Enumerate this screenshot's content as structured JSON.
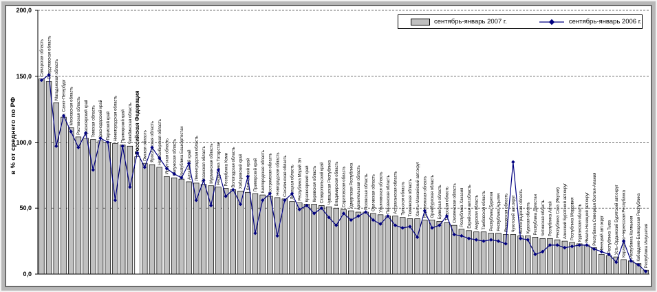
{
  "window": {
    "background": "#ffffff",
    "frame_color": "#b8b8b8"
  },
  "colors": {
    "bar_fill": "#c0c0c0",
    "bar_highlight_fill": "#ffffff",
    "bar_stroke": "#000000",
    "line_color": "#000080",
    "grid_color": "#404040",
    "axis_color": "#000000",
    "legend_border": "#000000"
  },
  "chart_data": {
    "type": "bar",
    "title": "",
    "xlabel": "",
    "ylabel": "в % от среднего по РФ",
    "ylim": [
      0,
      200
    ],
    "ytick_values": [
      0,
      50,
      100,
      150,
      200
    ],
    "ytick_labels": [
      "0,0",
      "50,0",
      "100,0",
      "150,0",
      "200,0"
    ],
    "grid": "horizontal dashed at 50/100/150/200",
    "legend_position": "top-right inside plot",
    "highlight_category": "Российская Федерация",
    "categories": [
      "Самарская область",
      "Свердловская область",
      "Магаданская область",
      "г. Санкт-Петербург",
      "Московская область",
      "Ростовская область",
      "Красноярский край",
      "Томская область",
      "Краснодарский край",
      "Пермский край",
      "Нижегородская область",
      "Приморский край",
      "Челябинская область",
      "Российская Федерация",
      "Омская область",
      "Ярославская область",
      "Новосибирская область",
      "Иркутская область",
      "Калужская область",
      "Республика Башкортостан",
      "Алтайский край",
      "Ленинградская область",
      "Рязанская область",
      "Мурманская область",
      "Республика Татарстан",
      "Республика Коми",
      "Вологодская область",
      "Хабаровский край",
      "Камчатский край",
      "Приморский край",
      "Белгородская область",
      "Костромская область",
      "Новгородская область",
      "Сахалинская область",
      "Липецкая область",
      "Республика Марий Эл",
      "Красноярский край",
      "Кировская область",
      "Ставропольский край",
      "Чувашская Республика",
      "Владимирская область",
      "Саратовская область",
      "Удмуртская Республика",
      "Архангельская область",
      "Псковская область",
      "Орловская область",
      "Ульяновская область",
      "Пензенская область",
      "Астраханская область",
      "Тульская область",
      "Тюменская область",
      "Ханты-Мансийский авт.округ",
      "Воронежская область",
      "Оренбургская область",
      "Брянская область",
      "Тверская область",
      "Смоленская область",
      "Республика Хакасия",
      "Еврейская авт.область",
      "Амурская область",
      "Тамбовская область",
      "Республика Бурятия",
      "Республика Адыгея",
      "Ивановская область",
      "Чукотский авт.округ",
      "Волгоградская область",
      "Курская область",
      "Республика Дагестан",
      "Читинская область",
      "Республика Алтай",
      "Республика Саха (Якутия)",
      "Агинский Бурятский авт.округ",
      "Республика Мордовия",
      "Курганская область",
      "Ямало-Ненецкий авт.округ",
      "Республика Северная Осетия-Алания",
      "Ненецкий авт.округ",
      "Республика Тыва",
      "Усть-Ордынский Бурятский авт.округ",
      "Карачаево-Черкесская Республика",
      "Республика Калмыкия",
      "Кабардино-Балкарская Республика",
      "Республика Ингушетия"
    ],
    "series": [
      {
        "name": "сентябрь-январь 2007 г.",
        "kind": "bar",
        "color": "#c0c0c0",
        "values": [
          148,
          146,
          130,
          119,
          111,
          104,
          103,
          102,
          101,
          100,
          99,
          98,
          97,
          89,
          84,
          83,
          81,
          74,
          73,
          72,
          70,
          69,
          68,
          67,
          66,
          65,
          64,
          63,
          62,
          61,
          60,
          59,
          58,
          57,
          55,
          54,
          53,
          53,
          52,
          51,
          50,
          49,
          48,
          47,
          47,
          46,
          45,
          44,
          44,
          43,
          42,
          42,
          41,
          41,
          40,
          39,
          37,
          34,
          33,
          32,
          32,
          31,
          31,
          30,
          30,
          29,
          29,
          28,
          27,
          27,
          26,
          25,
          24,
          23,
          22,
          20,
          15,
          14,
          13,
          11,
          10,
          8,
          3
        ]
      },
      {
        "name": "сентябрь-январь 2006 г.",
        "kind": "line",
        "color": "#000080",
        "values": [
          147,
          151,
          97,
          120,
          108,
          96,
          107,
          79,
          103,
          100,
          56,
          97,
          66,
          92,
          81,
          96,
          88,
          80,
          76,
          73,
          84,
          56,
          71,
          52,
          79,
          59,
          64,
          53,
          74,
          31,
          56,
          61,
          29,
          56,
          61,
          49,
          52,
          46,
          50,
          43,
          37,
          46,
          41,
          44,
          47,
          41,
          38,
          44,
          37,
          35,
          36,
          28,
          48,
          35,
          37,
          44,
          30,
          29,
          27,
          26,
          25,
          26,
          25,
          23,
          85,
          27,
          26,
          15,
          17,
          22,
          22,
          20,
          21,
          22,
          22,
          19,
          17,
          15,
          9,
          25,
          10,
          7,
          2
        ]
      }
    ]
  }
}
